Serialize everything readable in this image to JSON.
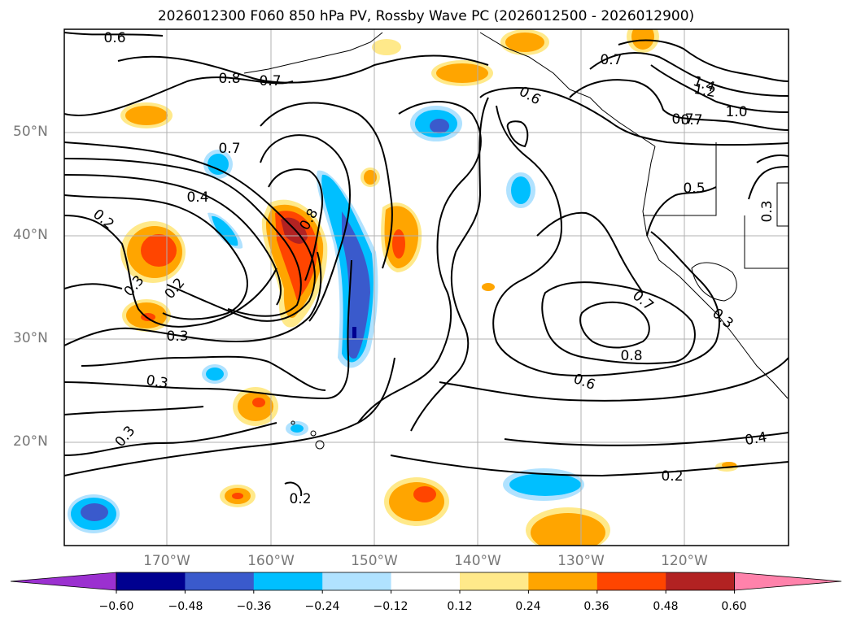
{
  "title": "2026012300 F060 850 hPa PV, Rossby Wave PC (2026012500 - 2026012900)",
  "latitude_labels": [
    "50°N",
    "40°N",
    "30°N",
    "20°N"
  ],
  "longitude_labels": [
    "170°W",
    "160°W",
    "150°W",
    "140°W",
    "130°W",
    "120°W"
  ],
  "contour_labels": [
    "0.6",
    "0.8",
    "0.7",
    "0.7",
    "0.6",
    "0.7",
    "1.4",
    "1.2",
    "1.0",
    "0.7",
    "0.5",
    "0.3",
    "0.7",
    "0.4",
    "0.2",
    "0.8",
    "0.3",
    "0.2",
    "0.3",
    "0.3",
    "0.7",
    "0.3",
    "0.8",
    "0.6",
    "0.3",
    "0.4",
    "0.2",
    "0.2"
  ],
  "colorbar": {
    "ticks": [
      "−0.60",
      "−0.48",
      "−0.36",
      "−0.24",
      "−0.12",
      "0.12",
      "0.24",
      "0.36",
      "0.48",
      "0.60"
    ],
    "colors": [
      "#9b30d0",
      "#000090",
      "#3a5acc",
      "#00bfff",
      "#b0e2ff",
      "#ffffff",
      "#ffe98a",
      "#ffa500",
      "#ff4500",
      "#b22222",
      "#ff82ab"
    ]
  },
  "chart_data": {
    "type": "contour-map",
    "variable": "850 hPa PV with Rossby Wave PC shading",
    "extent": {
      "lon": [
        -180,
        -110
      ],
      "lat": [
        10,
        60
      ]
    },
    "contour_values": [
      0.2,
      0.3,
      0.4,
      0.5,
      0.6,
      0.7,
      0.8,
      1.0,
      1.2,
      1.4
    ],
    "shading_levels": [
      -0.6,
      -0.48,
      -0.36,
      -0.24,
      -0.12,
      0.12,
      0.24,
      0.36,
      0.48,
      0.6
    ]
  }
}
